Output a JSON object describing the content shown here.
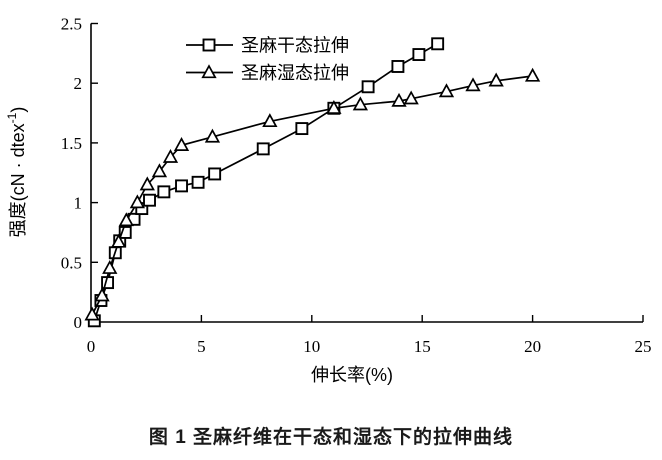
{
  "figure": {
    "caption": "图 1  圣麻纤维在干态和湿态下的拉伸曲线"
  },
  "chart_data": {
    "type": "line",
    "title": "",
    "xlabel": "伸长率(%)",
    "ylabel": "强度(cN·dtex⁻¹)",
    "ylabel_parts": {
      "main": "强度(cN · dtex",
      "sup": "-1",
      "end": ")"
    },
    "xlim": [
      0,
      25
    ],
    "ylim": [
      0,
      2.5
    ],
    "x_ticks": [
      0,
      5,
      10,
      15,
      20,
      25
    ],
    "x_tick_labels": [
      "0",
      "5",
      "10",
      "15",
      "20",
      "25"
    ],
    "y_ticks": [
      0,
      0.5,
      1,
      1.5,
      2,
      2.5
    ],
    "y_tick_labels": [
      "0",
      "0.5",
      "1",
      "1.5",
      "2",
      "2.5"
    ],
    "grid": false,
    "legend_position": "inside-top",
    "line_color": "#000000",
    "background_color": "#ffffff",
    "series": [
      {
        "name": "圣麻干态拉伸",
        "marker": "square",
        "color": "#000000",
        "points": [
          [
            0.15,
            0.01
          ],
          [
            0.45,
            0.18
          ],
          [
            0.75,
            0.33
          ],
          [
            1.1,
            0.58
          ],
          [
            1.3,
            0.68
          ],
          [
            1.55,
            0.75
          ],
          [
            1.95,
            0.86
          ],
          [
            2.3,
            0.95
          ],
          [
            2.65,
            1.02
          ],
          [
            3.3,
            1.09
          ],
          [
            4.1,
            1.14
          ],
          [
            4.85,
            1.17
          ],
          [
            5.6,
            1.24
          ],
          [
            7.8,
            1.45
          ],
          [
            9.55,
            1.62
          ],
          [
            11.0,
            1.79
          ],
          [
            12.55,
            1.97
          ],
          [
            13.9,
            2.14
          ],
          [
            14.85,
            2.24
          ],
          [
            15.7,
            2.33
          ]
        ]
      },
      {
        "name": "圣麻湿态拉伸",
        "marker": "triangle",
        "color": "#000000",
        "points": [
          [
            0.05,
            0.06
          ],
          [
            0.5,
            0.22
          ],
          [
            0.85,
            0.45
          ],
          [
            1.25,
            0.67
          ],
          [
            1.6,
            0.85
          ],
          [
            2.1,
            1.0
          ],
          [
            2.55,
            1.15
          ],
          [
            3.1,
            1.26
          ],
          [
            3.6,
            1.38
          ],
          [
            4.1,
            1.48
          ],
          [
            5.5,
            1.55
          ],
          [
            8.1,
            1.68
          ],
          [
            11.0,
            1.79
          ],
          [
            12.2,
            1.82
          ],
          [
            13.95,
            1.85
          ],
          [
            14.5,
            1.87
          ],
          [
            16.1,
            1.93
          ],
          [
            17.3,
            1.98
          ],
          [
            18.35,
            2.02
          ],
          [
            20.0,
            2.06
          ]
        ]
      }
    ]
  }
}
